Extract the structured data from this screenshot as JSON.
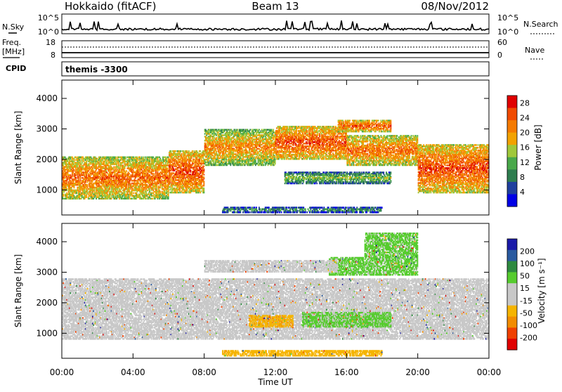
{
  "header": {
    "title_left": "Hokkaido (fitACF)",
    "title_center": "Beam 13",
    "title_right": "08/Nov/2012"
  },
  "strip1": {
    "left_label": "N.Sky",
    "right_label": "N.Search",
    "left_ticks": [
      "10^5",
      "10^0"
    ],
    "right_ticks": [
      "10^5",
      "10^0"
    ]
  },
  "strip2": {
    "left_label_1": "Freq.",
    "left_label_2": "[MHz]",
    "right_label": "Nave",
    "left_ticks": [
      "18",
      "8"
    ],
    "right_ticks": [
      "60",
      "0"
    ]
  },
  "cpid": {
    "label": "CPID",
    "text": "themis -3300"
  },
  "colors": {
    "power_scale": [
      "#0000e6",
      "#1f3f9e",
      "#2e7d4f",
      "#49a84a",
      "#a0c83a",
      "#f2a200",
      "#f57a00",
      "#f04a00",
      "#e00000"
    ],
    "velocity_scale": [
      "#e00000",
      "#f04000",
      "#f28c00",
      "#f5b400",
      "#c8c8c8",
      "#c8c8c8",
      "#56cc2e",
      "#2e8a40",
      "#2a5aa0",
      "#1a1aa8"
    ]
  },
  "chart_data": [
    {
      "type": "heatmap",
      "title": "",
      "xlabel": "Time UT",
      "ylabel": "Slant Range [km]",
      "x_tick_labels": [
        "00:00",
        "04:00",
        "08:00",
        "12:00",
        "16:00",
        "20:00",
        "00:00"
      ],
      "y_ticks": [
        1000,
        2000,
        3000,
        4000
      ],
      "xlim": [
        0,
        24
      ],
      "ylim": [
        180,
        4600
      ],
      "colorbar_label": "Power [dB]",
      "colorbar_ticks": [
        4,
        8,
        12,
        16,
        20,
        24,
        28
      ],
      "colorbar_range": [
        0,
        30
      ],
      "description_bands": [
        {
          "t0": 0.0,
          "t1": 6.0,
          "r0": 700,
          "r1": 2100,
          "value": 24
        },
        {
          "t0": 6.0,
          "t1": 8.0,
          "r0": 900,
          "r1": 2300,
          "value": 26
        },
        {
          "t0": 8.0,
          "t1": 12.0,
          "r0": 1800,
          "r1": 3000,
          "value": 22
        },
        {
          "t0": 12.0,
          "t1": 16.0,
          "r0": 2000,
          "r1": 3100,
          "value": 26
        },
        {
          "t0": 16.0,
          "t1": 20.0,
          "r0": 1800,
          "r1": 2800,
          "value": 24
        },
        {
          "t0": 20.0,
          "t1": 24.0,
          "r0": 900,
          "r1": 2500,
          "value": 26
        },
        {
          "t0": 15.5,
          "t1": 18.5,
          "r0": 2900,
          "r1": 3300,
          "value": 26
        },
        {
          "t0": 12.5,
          "t1": 18.5,
          "r0": 1200,
          "r1": 1600,
          "value": 16
        },
        {
          "t0": 9.0,
          "t1": 18.0,
          "r0": 250,
          "r1": 450,
          "value": 14
        }
      ]
    },
    {
      "type": "heatmap",
      "title": "",
      "xlabel": "Time UT",
      "ylabel": "Slant Range [km]",
      "x_tick_labels": [
        "00:00",
        "04:00",
        "08:00",
        "12:00",
        "16:00",
        "20:00",
        "00:00"
      ],
      "y_ticks": [
        1000,
        2000,
        3000,
        4000
      ],
      "xlim": [
        0,
        24
      ],
      "ylim": [
        180,
        4600
      ],
      "colorbar_label": "Velocity [m s⁻¹]",
      "colorbar_ticks": [
        200,
        100,
        50,
        15,
        -15,
        -50,
        -100,
        -200
      ],
      "colorbar_range": [
        -250,
        250
      ],
      "description_bands": [
        {
          "t0": 0.0,
          "t1": 24.0,
          "r0": 800,
          "r1": 2800,
          "value": 0
        },
        {
          "t0": 15.0,
          "t1": 20.0,
          "r0": 2900,
          "r1": 3500,
          "value": 60
        },
        {
          "t0": 17.0,
          "t1": 20.0,
          "r0": 3500,
          "r1": 4300,
          "value": 60
        },
        {
          "t0": 13.5,
          "t1": 18.5,
          "r0": 1200,
          "r1": 1700,
          "value": 60
        },
        {
          "t0": 10.5,
          "t1": 13.0,
          "r0": 1200,
          "r1": 1600,
          "value": -90
        },
        {
          "t0": 9.0,
          "t1": 18.0,
          "r0": 250,
          "r1": 450,
          "value": -80
        },
        {
          "t0": 8.0,
          "t1": 15.5,
          "r0": 3000,
          "r1": 3400,
          "value": 0
        }
      ]
    }
  ]
}
